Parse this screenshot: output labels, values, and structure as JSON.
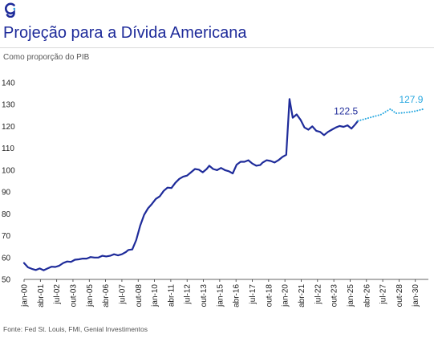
{
  "header": {
    "title": "Projeção para a Dívida Americana",
    "subtitle": "Como proporção do PIB",
    "source": "Fonte: Fed St. Louis, FMI, Genial Investimentos"
  },
  "brand": {
    "primary": "#1e2b9a",
    "projection": "#29a8e0",
    "logo": "g-logo-icon"
  },
  "chart_data": {
    "type": "line",
    "title": "Projeção para a Dívida Americana",
    "subtitle": "Como proporção do PIB",
    "xlabel": "",
    "ylabel": "",
    "ylim": [
      50,
      140
    ],
    "yticks": [
      50,
      60,
      70,
      80,
      90,
      100,
      110,
      120,
      130,
      140
    ],
    "xlim": [
      2000.0,
      2031.0
    ],
    "xticks": [
      {
        "label": "jan-00",
        "x": 2000.0
      },
      {
        "label": "abr-01",
        "x": 2001.25
      },
      {
        "label": "jul-02",
        "x": 2002.5
      },
      {
        "label": "out-03",
        "x": 2003.75
      },
      {
        "label": "jan-05",
        "x": 2005.0
      },
      {
        "label": "abr-06",
        "x": 2006.25
      },
      {
        "label": "jul-07",
        "x": 2007.5
      },
      {
        "label": "out-08",
        "x": 2008.75
      },
      {
        "label": "jan-10",
        "x": 2010.0
      },
      {
        "label": "abr-11",
        "x": 2011.25
      },
      {
        "label": "jul-12",
        "x": 2012.5
      },
      {
        "label": "out-13",
        "x": 2013.75
      },
      {
        "label": "jan-15",
        "x": 2015.0
      },
      {
        "label": "abr-16",
        "x": 2016.25
      },
      {
        "label": "jul-17",
        "x": 2017.5
      },
      {
        "label": "out-18",
        "x": 2018.75
      },
      {
        "label": "jan-20",
        "x": 2020.0
      },
      {
        "label": "abr-21",
        "x": 2021.25
      },
      {
        "label": "jul-22",
        "x": 2022.5
      },
      {
        "label": "out-23",
        "x": 2023.75
      },
      {
        "label": "jan-25",
        "x": 2025.0
      },
      {
        "label": "abr-26",
        "x": 2026.25
      },
      {
        "label": "jul-27",
        "x": 2027.5
      },
      {
        "label": "out-28",
        "x": 2028.75
      },
      {
        "label": "jan-30",
        "x": 2030.0
      }
    ],
    "grid": false,
    "legend": "none",
    "series": [
      {
        "style": "solid",
        "color": "#1e2b9a",
        "points": [
          [
            2000.0,
            57.5
          ],
          [
            2000.3,
            55.5
          ],
          [
            2000.6,
            54.8
          ],
          [
            2000.9,
            54.3
          ],
          [
            2001.2,
            55.0
          ],
          [
            2001.5,
            54.2
          ],
          [
            2001.8,
            55.0
          ],
          [
            2002.1,
            55.8
          ],
          [
            2002.4,
            55.7
          ],
          [
            2002.7,
            56.3
          ],
          [
            2003.0,
            57.5
          ],
          [
            2003.3,
            58.2
          ],
          [
            2003.6,
            58.0
          ],
          [
            2003.9,
            59.0
          ],
          [
            2004.2,
            59.2
          ],
          [
            2004.5,
            59.5
          ],
          [
            2004.8,
            59.5
          ],
          [
            2005.1,
            60.2
          ],
          [
            2005.4,
            60.0
          ],
          [
            2005.7,
            60.0
          ],
          [
            2006.0,
            60.8
          ],
          [
            2006.3,
            60.5
          ],
          [
            2006.6,
            60.8
          ],
          [
            2006.9,
            61.5
          ],
          [
            2007.2,
            61.0
          ],
          [
            2007.5,
            61.5
          ],
          [
            2007.8,
            62.5
          ],
          [
            2008.0,
            63.5
          ],
          [
            2008.3,
            63.7
          ],
          [
            2008.6,
            68.0
          ],
          [
            2008.9,
            74.5
          ],
          [
            2009.2,
            79.5
          ],
          [
            2009.5,
            82.5
          ],
          [
            2009.8,
            84.5
          ],
          [
            2010.1,
            86.8
          ],
          [
            2010.4,
            88.0
          ],
          [
            2010.7,
            90.5
          ],
          [
            2011.0,
            92.0
          ],
          [
            2011.3,
            91.8
          ],
          [
            2011.6,
            94.2
          ],
          [
            2011.9,
            96.0
          ],
          [
            2012.2,
            97.0
          ],
          [
            2012.5,
            97.5
          ],
          [
            2012.8,
            99.0
          ],
          [
            2013.1,
            100.5
          ],
          [
            2013.4,
            100.2
          ],
          [
            2013.7,
            99.0
          ],
          [
            2014.0,
            100.5
          ],
          [
            2014.2,
            102.0
          ],
          [
            2014.5,
            100.5
          ],
          [
            2014.8,
            100.0
          ],
          [
            2015.1,
            101.0
          ],
          [
            2015.4,
            100.0
          ],
          [
            2015.7,
            99.5
          ],
          [
            2016.0,
            98.5
          ],
          [
            2016.3,
            102.5
          ],
          [
            2016.6,
            103.8
          ],
          [
            2016.9,
            103.8
          ],
          [
            2017.2,
            104.5
          ],
          [
            2017.5,
            103.0
          ],
          [
            2017.8,
            102.0
          ],
          [
            2018.1,
            102.3
          ],
          [
            2018.3,
            103.5
          ],
          [
            2018.6,
            104.5
          ],
          [
            2018.9,
            104.2
          ],
          [
            2019.2,
            103.5
          ],
          [
            2019.5,
            104.5
          ],
          [
            2019.8,
            106.0
          ],
          [
            2020.1,
            107.0
          ],
          [
            2020.35,
            132.5
          ],
          [
            2020.6,
            124.0
          ],
          [
            2020.9,
            125.5
          ],
          [
            2021.2,
            123.0
          ],
          [
            2021.5,
            119.5
          ],
          [
            2021.8,
            118.5
          ],
          [
            2022.1,
            120.0
          ],
          [
            2022.4,
            118.0
          ],
          [
            2022.7,
            117.5
          ],
          [
            2023.0,
            116.0
          ],
          [
            2023.3,
            117.5
          ],
          [
            2023.6,
            118.5
          ],
          [
            2023.9,
            119.5
          ],
          [
            2024.2,
            120.2
          ],
          [
            2024.5,
            119.8
          ],
          [
            2024.8,
            120.5
          ],
          [
            2025.1,
            119.0
          ],
          [
            2025.4,
            121.0
          ],
          [
            2025.6,
            122.5
          ]
        ]
      },
      {
        "style": "dotted",
        "color": "#29a8e0",
        "points": [
          [
            2025.6,
            122.5
          ],
          [
            2026.2,
            123.5
          ],
          [
            2026.8,
            124.5
          ],
          [
            2027.4,
            125.5
          ],
          [
            2027.8,
            127.0
          ],
          [
            2028.1,
            128.0
          ],
          [
            2028.5,
            126.0
          ],
          [
            2029.0,
            126.2
          ],
          [
            2029.5,
            126.5
          ],
          [
            2030.0,
            127.0
          ],
          [
            2030.6,
            127.9
          ]
        ]
      }
    ],
    "annotations": [
      {
        "text": "122.5",
        "x": 2025.6,
        "y": 122.5,
        "color": "#1e2b9a"
      },
      {
        "text": "127.9",
        "x": 2030.6,
        "y": 127.9,
        "color": "#29a8e0"
      }
    ]
  }
}
